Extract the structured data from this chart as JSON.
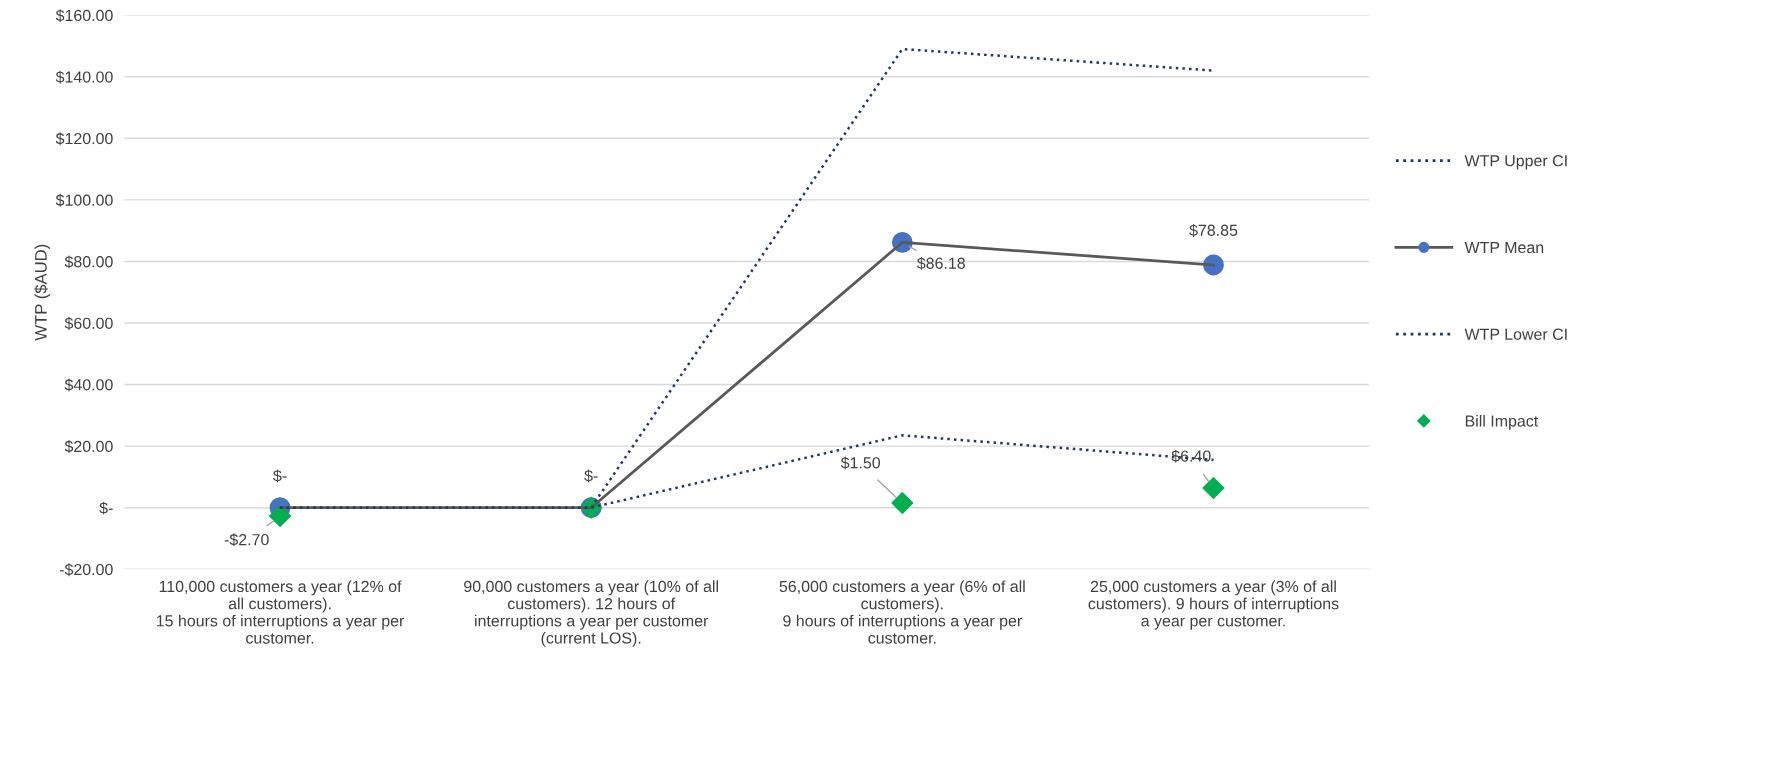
{
  "chart_data": {
    "type": "line",
    "ylabel": "WTP ($AUD)",
    "categories": [
      "110,000 customers a year (12% of\nall customers).\n15 hours of interruptions a year per\ncustomer.",
      "90,000 customers a year (10% of all\ncustomers). 12 hours of\ninterruptions a year per customer\n(current LOS).",
      "56,000 customers a year (6% of all\ncustomers).\n9 hours of interruptions a year per\ncustomer.",
      "25,000 customers a year (3% of all\ncustomers). 9 hours of interruptions\na year per customer."
    ],
    "series": [
      {
        "name": "WTP Upper CI",
        "color": "#1f3864",
        "line_style": "dotted",
        "values": [
          0,
          0,
          149,
          142
        ]
      },
      {
        "name": "WTP Mean",
        "color": "#4472c4",
        "line_style": "solid",
        "marker": "circle",
        "values": [
          0,
          0,
          86.18,
          78.85
        ],
        "value_labels": [
          "$-",
          "$-",
          "$86.18",
          "$78.85"
        ]
      },
      {
        "name": "WTP Lower CI",
        "color": "#1f3864",
        "line_style": "dotted",
        "values": [
          0,
          0,
          23.5,
          15.5
        ]
      },
      {
        "name": "Bill Impact",
        "type": "scatter",
        "color": "#00b050",
        "marker": "diamond",
        "values": [
          -2.7,
          0,
          1.5,
          6.4
        ],
        "value_labels": [
          "-$2.70",
          null,
          "$1.50",
          "$6.40"
        ]
      }
    ],
    "ylim": [
      -20,
      160
    ],
    "yticks": [
      {
        "value": -20,
        "label": "-$20.00"
      },
      {
        "value": 0,
        "label": "$-"
      },
      {
        "value": 20,
        "label": "$20.00"
      },
      {
        "value": 40,
        "label": "$40.00"
      },
      {
        "value": 60,
        "label": "$60.00"
      },
      {
        "value": 80,
        "label": "$80.00"
      },
      {
        "value": 100,
        "label": "$100.00"
      },
      {
        "value": 120,
        "label": "$120.00"
      },
      {
        "value": 140,
        "label": "$140.00"
      },
      {
        "value": 160,
        "label": "$160.00"
      }
    ],
    "grid": "y",
    "legend": "right"
  }
}
